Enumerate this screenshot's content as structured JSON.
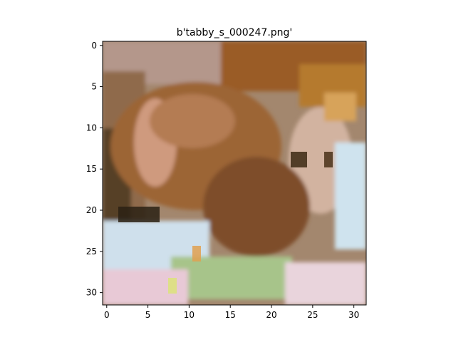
{
  "figure": {
    "title": "b'tabby_s_000247.png'",
    "image_size": [
      32,
      32
    ],
    "x_ticks": [
      "0",
      "5",
      "10",
      "15",
      "20",
      "25",
      "30"
    ],
    "y_ticks": [
      "0",
      "5",
      "10",
      "15",
      "20",
      "25",
      "30"
    ],
    "image_description": "low-resolution pixelated photo of a brown tabby cat lying on a colorful blanket, facing right, with light pink and mint-green patches in the lower area and warm brown/orange tones in the upper right",
    "palette": {
      "background": "#ffffff",
      "frame": "#000000",
      "text": "#000000",
      "warm_brown": "#8b5a2b",
      "dark_brown": "#3c2a14",
      "fur_tan": "#c89670",
      "light_pink": "#e8c9d6",
      "mint_green": "#a7c48a",
      "pale_blue": "#cfe3ee"
    }
  }
}
